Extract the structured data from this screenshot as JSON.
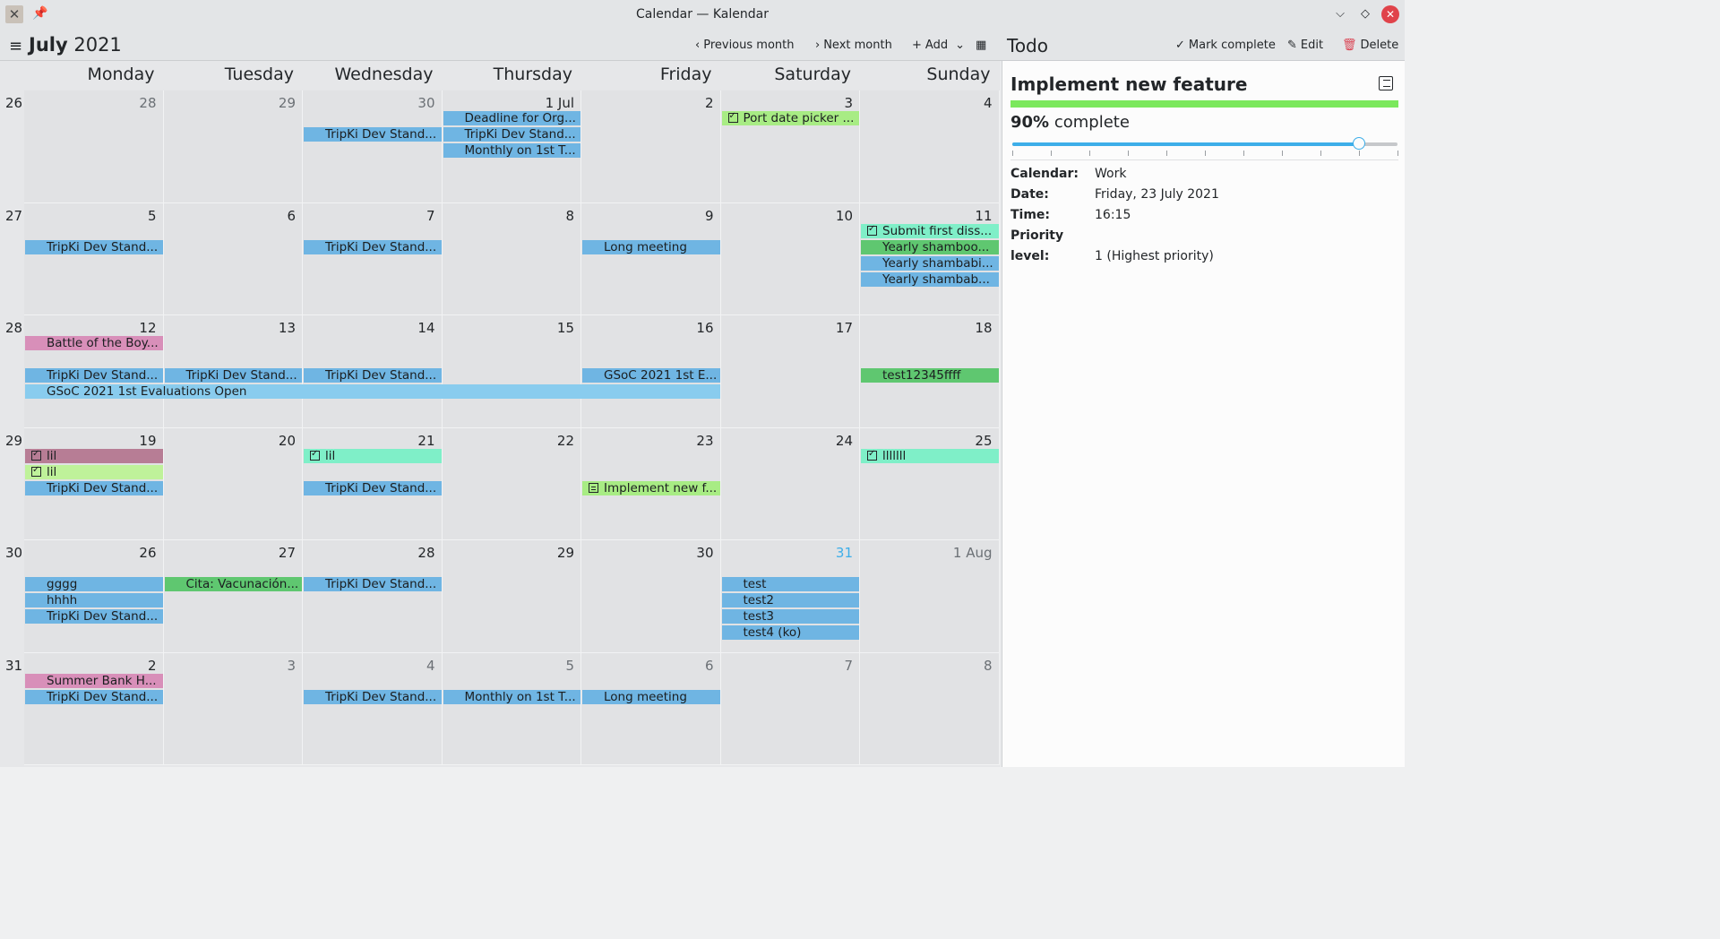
{
  "window": {
    "title": "Calendar — Kalendar",
    "app_icon": "kalendar-icon",
    "pin_icon": "pin-icon"
  },
  "toolbar": {
    "month_name": "July",
    "year": "2021",
    "previous_month": "Previous month",
    "next_month": "Next month",
    "add": "Add",
    "todo_title": "Todo",
    "mark_complete": "Mark complete",
    "edit": "Edit",
    "delete": "Delete"
  },
  "weekdays": [
    "Monday",
    "Tuesday",
    "Wednesday",
    "Thursday",
    "Friday",
    "Saturday",
    "Sunday"
  ],
  "weeks": [
    {
      "num": "26",
      "days": [
        {
          "label": "28",
          "other": true
        },
        {
          "label": "29",
          "other": true
        },
        {
          "label": "30",
          "other": true
        },
        {
          "label": "1 Jul"
        },
        {
          "label": "2"
        },
        {
          "label": "3"
        },
        {
          "label": "4"
        }
      ]
    },
    {
      "num": "27",
      "days": [
        {
          "label": "5"
        },
        {
          "label": "6"
        },
        {
          "label": "7"
        },
        {
          "label": "8"
        },
        {
          "label": "9"
        },
        {
          "label": "10"
        },
        {
          "label": "11"
        }
      ]
    },
    {
      "num": "28",
      "days": [
        {
          "label": "12"
        },
        {
          "label": "13"
        },
        {
          "label": "14"
        },
        {
          "label": "15"
        },
        {
          "label": "16"
        },
        {
          "label": "17"
        },
        {
          "label": "18"
        }
      ]
    },
    {
      "num": "29",
      "days": [
        {
          "label": "19"
        },
        {
          "label": "20"
        },
        {
          "label": "21"
        },
        {
          "label": "22"
        },
        {
          "label": "23"
        },
        {
          "label": "24"
        },
        {
          "label": "25"
        }
      ]
    },
    {
      "num": "30",
      "days": [
        {
          "label": "26"
        },
        {
          "label": "27"
        },
        {
          "label": "28"
        },
        {
          "label": "29"
        },
        {
          "label": "30"
        },
        {
          "label": "31",
          "today": true
        },
        {
          "label": "1 Aug",
          "other": true
        }
      ]
    },
    {
      "num": "31",
      "days": [
        {
          "label": "2"
        },
        {
          "label": "3",
          "other": true
        },
        {
          "label": "4",
          "other": true
        },
        {
          "label": "5",
          "other": true
        },
        {
          "label": "6",
          "other": true
        },
        {
          "label": "7",
          "other": true
        },
        {
          "label": "8",
          "other": true
        }
      ]
    }
  ],
  "events": [
    {
      "w": 0,
      "d": 3,
      "span": 1,
      "slot": 0,
      "text": "Deadline for Org...",
      "color": "#6fb5e3",
      "icon": "cal"
    },
    {
      "w": 0,
      "d": 2,
      "span": 1,
      "slot": 1,
      "text": "TripKi Dev Stand...",
      "color": "#6fb5e3",
      "icon": "cal"
    },
    {
      "w": 0,
      "d": 3,
      "span": 1,
      "slot": 1,
      "text": "TripKi Dev Stand...",
      "color": "#6fb5e3",
      "icon": "cal"
    },
    {
      "w": 0,
      "d": 3,
      "span": 1,
      "slot": 2,
      "text": "Monthly on 1st T...",
      "color": "#6fb5e3",
      "icon": "cal"
    },
    {
      "w": 0,
      "d": 5,
      "span": 1,
      "slot": 0,
      "text": "Port date picker ...",
      "color": "#a8ec84",
      "icon": "chk"
    },
    {
      "w": 1,
      "d": 6,
      "span": 1,
      "slot": 0,
      "text": "Submit first diss...",
      "color": "#7fefc8",
      "icon": "chk"
    },
    {
      "w": 1,
      "d": 6,
      "span": 1,
      "slot": 1,
      "text": "Yearly shamboo...",
      "color": "#5fc770",
      "icon": "cal"
    },
    {
      "w": 1,
      "d": 0,
      "span": 1,
      "slot": 1,
      "text": "TripKi Dev Stand...",
      "color": "#6fb5e3",
      "icon": "cal"
    },
    {
      "w": 1,
      "d": 2,
      "span": 1,
      "slot": 1,
      "text": "TripKi Dev Stand...",
      "color": "#6fb5e3",
      "icon": "cal"
    },
    {
      "w": 1,
      "d": 4,
      "span": 1,
      "slot": 1,
      "text": "Long meeting",
      "color": "#6fb5e3",
      "icon": "cal"
    },
    {
      "w": 1,
      "d": 6,
      "span": 1,
      "slot": 2,
      "text": "Yearly shambabi...",
      "color": "#6fb5e3",
      "icon": "cal"
    },
    {
      "w": 1,
      "d": 6,
      "span": 1,
      "slot": 3,
      "text": "Yearly shambab...",
      "color": "#6fb5e3",
      "icon": "cal"
    },
    {
      "w": 2,
      "d": 0,
      "span": 1,
      "slot": 0,
      "text": "Battle of the Boy...",
      "color": "#d88fb9",
      "icon": "cal"
    },
    {
      "w": 2,
      "d": 0,
      "span": 1,
      "slot": 2,
      "text": "TripKi Dev Stand...",
      "color": "#6fb5e3",
      "icon": "cal"
    },
    {
      "w": 2,
      "d": 1,
      "span": 1,
      "slot": 2,
      "text": "TripKi Dev Stand...",
      "color": "#6fb5e3",
      "icon": "cal"
    },
    {
      "w": 2,
      "d": 2,
      "span": 1,
      "slot": 2,
      "text": "TripKi Dev Stand...",
      "color": "#6fb5e3",
      "icon": "cal"
    },
    {
      "w": 2,
      "d": 4,
      "span": 1,
      "slot": 2,
      "text": "GSoC 2021 1st E...",
      "color": "#6fb5e3",
      "icon": "cal"
    },
    {
      "w": 2,
      "d": 6,
      "span": 1,
      "slot": 2,
      "text": "test12345ffff",
      "color": "#5fc770",
      "icon": "cal"
    },
    {
      "w": 2,
      "d": 0,
      "span": 5,
      "slot": 3,
      "text": "GSoC 2021 1st Evaluations Open",
      "color": "#89ccee",
      "icon": "cal"
    },
    {
      "w": 3,
      "d": 0,
      "span": 1,
      "slot": 0,
      "text": "lil",
      "color": "#b77d95",
      "icon": "chk"
    },
    {
      "w": 3,
      "d": 2,
      "span": 1,
      "slot": 0,
      "text": "lil",
      "color": "#7fefc8",
      "icon": "chk"
    },
    {
      "w": 3,
      "d": 6,
      "span": 1,
      "slot": 0,
      "text": "lllllll",
      "color": "#7fefc8",
      "icon": "chk"
    },
    {
      "w": 3,
      "d": 0,
      "span": 1,
      "slot": 1,
      "text": "lil",
      "color": "#bff29a",
      "icon": "chk"
    },
    {
      "w": 3,
      "d": 0,
      "span": 1,
      "slot": 2,
      "text": "TripKi Dev Stand...",
      "color": "#6fb5e3",
      "icon": "cal"
    },
    {
      "w": 3,
      "d": 2,
      "span": 1,
      "slot": 2,
      "text": "TripKi Dev Stand...",
      "color": "#6fb5e3",
      "icon": "cal"
    },
    {
      "w": 3,
      "d": 4,
      "span": 1,
      "slot": 2,
      "text": "Implement new f...",
      "color": "#a8ec84",
      "icon": "jr"
    },
    {
      "w": 4,
      "d": 0,
      "span": 1,
      "slot": 1,
      "text": "gggg",
      "color": "#6fb5e3",
      "icon": "cal"
    },
    {
      "w": 4,
      "d": 1,
      "span": 1,
      "slot": 1,
      "text": "Cita: Vacunación...",
      "color": "#5fc770",
      "icon": "cal"
    },
    {
      "w": 4,
      "d": 2,
      "span": 1,
      "slot": 1,
      "text": "TripKi Dev Stand...",
      "color": "#6fb5e3",
      "icon": "cal"
    },
    {
      "w": 4,
      "d": 5,
      "span": 1,
      "slot": 1,
      "text": "test",
      "color": "#6fb5e3",
      "icon": "cal"
    },
    {
      "w": 4,
      "d": 0,
      "span": 1,
      "slot": 2,
      "text": "hhhh",
      "color": "#6fb5e3",
      "icon": "cal"
    },
    {
      "w": 4,
      "d": 5,
      "span": 1,
      "slot": 2,
      "text": "test2",
      "color": "#6fb5e3",
      "icon": "cal"
    },
    {
      "w": 4,
      "d": 0,
      "span": 1,
      "slot": 3,
      "text": "TripKi Dev Stand...",
      "color": "#6fb5e3",
      "icon": "cal"
    },
    {
      "w": 4,
      "d": 5,
      "span": 1,
      "slot": 3,
      "text": "test3",
      "color": "#6fb5e3",
      "icon": "cal"
    },
    {
      "w": 4,
      "d": 5,
      "span": 1,
      "slot": 4,
      "text": "test4 (ko)",
      "color": "#6fb5e3",
      "icon": "cal"
    },
    {
      "w": 5,
      "d": 0,
      "span": 1,
      "slot": 0,
      "text": "Summer Bank H...",
      "color": "#d88fb9",
      "icon": "cal"
    },
    {
      "w": 5,
      "d": 0,
      "span": 1,
      "slot": 1,
      "text": "TripKi Dev Stand...",
      "color": "#6fb5e3",
      "icon": "cal"
    },
    {
      "w": 5,
      "d": 2,
      "span": 1,
      "slot": 1,
      "text": "TripKi Dev Stand...",
      "color": "#6fb5e3",
      "icon": "cal"
    },
    {
      "w": 5,
      "d": 3,
      "span": 1,
      "slot": 1,
      "text": "Monthly on 1st T...",
      "color": "#6fb5e3",
      "icon": "cal"
    },
    {
      "w": 5,
      "d": 4,
      "span": 1,
      "slot": 1,
      "text": "Long meeting",
      "color": "#6fb5e3",
      "icon": "cal"
    }
  ],
  "todo": {
    "title": "Implement new feature",
    "percent_value": "90%",
    "percent_suffix": "complete",
    "progress": 0.9,
    "progress_color": "#7be85c",
    "props": [
      {
        "key": "Calendar:",
        "value": "Work"
      },
      {
        "key": "Date:",
        "value": "Friday, 23 July 2021"
      },
      {
        "key": "Time:",
        "value": "16:15"
      },
      {
        "key": "Priority level:",
        "value": "1 (Highest priority)"
      }
    ]
  },
  "colors": {
    "accent": "#3daee9",
    "close_button": "#e0434a"
  }
}
